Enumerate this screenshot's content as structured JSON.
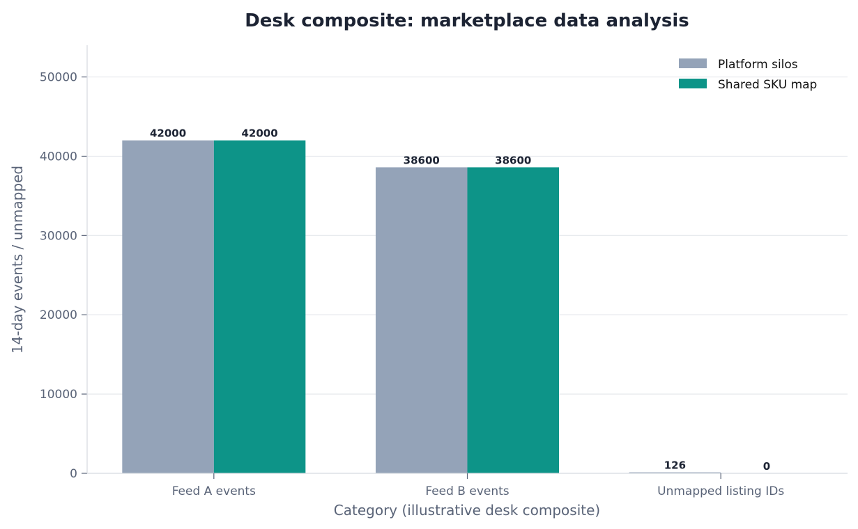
{
  "chart_data": {
    "type": "bar",
    "title": "Desk composite: marketplace data analysis",
    "xlabel": "Category (illustrative desk composite)",
    "ylabel": "14-day events / unmapped",
    "categories": [
      "Feed A events",
      "Feed B events",
      "Unmapped listing IDs"
    ],
    "series": [
      {
        "name": "Platform silos",
        "values": [
          42000,
          38600,
          126
        ],
        "color": "#94a3b8"
      },
      {
        "name": "Shared SKU map",
        "values": [
          42000,
          38600,
          0
        ],
        "color": "#0d9488"
      }
    ],
    "ylim": [
      0,
      54000
    ],
    "yticks": [
      0,
      10000,
      20000,
      30000,
      40000,
      50000
    ],
    "grid": "horizontal",
    "legend_position": "top-right"
  }
}
